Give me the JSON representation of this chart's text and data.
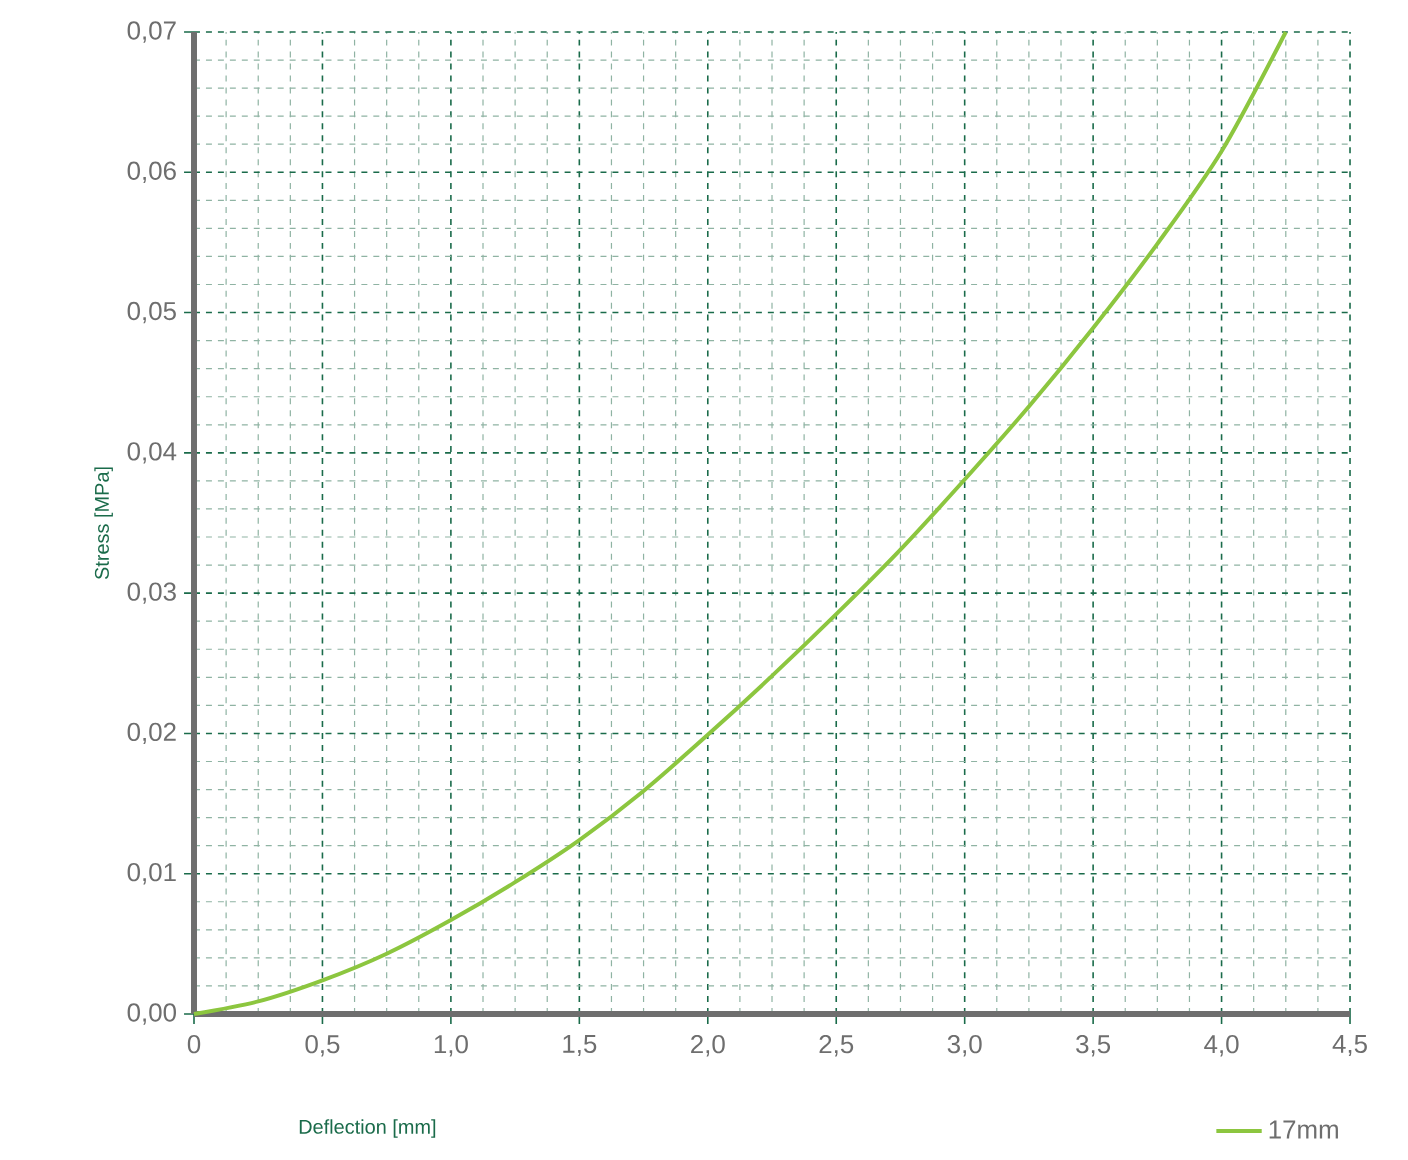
{
  "chart_data": {
    "type": "line",
    "xlabel": "Deflection [mm]",
    "ylabel": "Stress [MPa]",
    "x": [
      0,
      0.25,
      0.5,
      0.75,
      1.0,
      1.25,
      1.5,
      1.75,
      2.0,
      2.25,
      2.5,
      2.75,
      3.0,
      3.25,
      3.5,
      3.75,
      4.0,
      4.25
    ],
    "series": [
      {
        "name": "17mm",
        "color": "#8cc63f",
        "values": [
          0,
          0.0009,
          0.0024,
          0.0043,
          0.0067,
          0.0094,
          0.0124,
          0.0159,
          0.0199,
          0.0241,
          0.0285,
          0.0331,
          0.0381,
          0.0433,
          0.0489,
          0.0549,
          0.0615,
          0.07
        ]
      }
    ],
    "xlim": [
      0,
      4.5
    ],
    "ylim": [
      0,
      0.07
    ],
    "xticks": [
      0,
      {
        "value": 0.5,
        "label": "0,5"
      },
      {
        "value": 1.0,
        "label": "1,0"
      },
      {
        "value": 1.5,
        "label": "1,5"
      },
      {
        "value": 2.0,
        "label": "2,0"
      },
      {
        "value": 2.5,
        "label": "2,5"
      },
      {
        "value": 3.0,
        "label": "3,0"
      },
      {
        "value": 3.5,
        "label": "3,5"
      },
      {
        "value": 4.0,
        "label": "4,0"
      },
      {
        "value": 4.5,
        "label": "4,5"
      }
    ],
    "yticks": [
      {
        "value": 0,
        "label": "0,00"
      },
      {
        "value": 0.01,
        "label": "0,01"
      },
      {
        "value": 0.02,
        "label": "0,02"
      },
      {
        "value": 0.03,
        "label": "0,03"
      },
      {
        "value": 0.04,
        "label": "0,04"
      },
      {
        "value": 0.05,
        "label": "0,05"
      },
      {
        "value": 0.06,
        "label": "0,06"
      },
      {
        "value": 0.07,
        "label": "0,07"
      }
    ],
    "grid": true,
    "legend": "bottom right",
    "marker": "none",
    "line_style": "solid"
  }
}
